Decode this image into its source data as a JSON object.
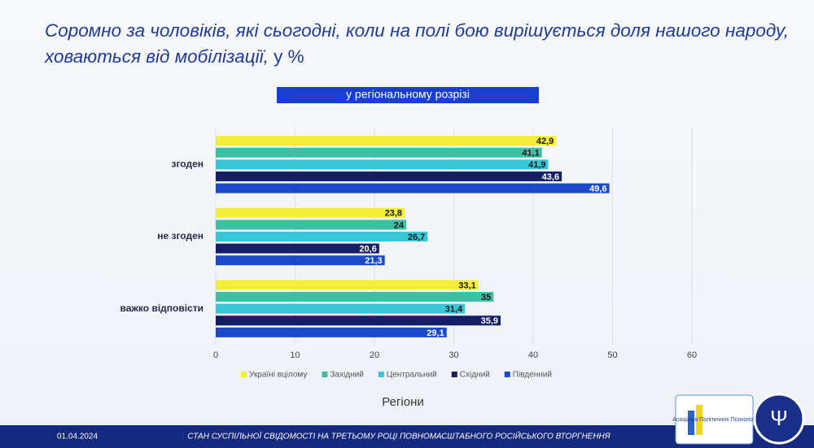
{
  "chart_data": {
    "type": "grouped-hbar",
    "title": "Соромно за чоловіків, які сьогодні, коли на полі бою вирішується доля нашого народу, ховаються від мобілізації,",
    "title_unit": "у %",
    "subtitle": "у регіональному розрізі",
    "x_label": "Регіони",
    "categories": [
      "згоден",
      "не згоден",
      "важко відповісти"
    ],
    "series": [
      {
        "name": "Україні вцілому",
        "color": "#f4ee3a",
        "values": [
          42.9,
          23.8,
          33.1
        ],
        "value_labels": [
          "42,9",
          "23,8",
          "33,1"
        ]
      },
      {
        "name": "Західний",
        "color": "#3dbfa6",
        "values": [
          41.1,
          24,
          35
        ],
        "value_labels": [
          "41,1",
          "24",
          "35"
        ]
      },
      {
        "name": "Центральний",
        "color": "#36c6d6",
        "values": [
          41.9,
          26.7,
          31.4
        ],
        "value_labels": [
          "41,9",
          "26,7",
          "31,4"
        ]
      },
      {
        "name": "Східний",
        "color": "#141f66",
        "values": [
          43.6,
          20.6,
          35.9
        ],
        "value_labels": [
          "43,6",
          "20,6",
          "35,9"
        ]
      },
      {
        "name": "Південний",
        "color": "#1c48cc",
        "values": [
          49.6,
          21.3,
          29.1
        ],
        "value_labels": [
          "49,6",
          "21,3",
          "29,1"
        ]
      }
    ],
    "xlim": [
      0,
      60
    ],
    "xticks": [
      0,
      10,
      20,
      30,
      40,
      50,
      60
    ],
    "grid": true,
    "legend": "bottom"
  },
  "footer": {
    "date": "01.04.2024",
    "text": "СТАН СУСПІЛЬНОЇ СВІДОМОСТІ НА ТРЕТЬОМУ РОЦІ ПОВНОМАСШТАБНОГО РОСІЙСЬКОГО ВТОРГНЕННЯ"
  },
  "logo": {
    "name": "Асоціація Політичних Психологів України"
  }
}
